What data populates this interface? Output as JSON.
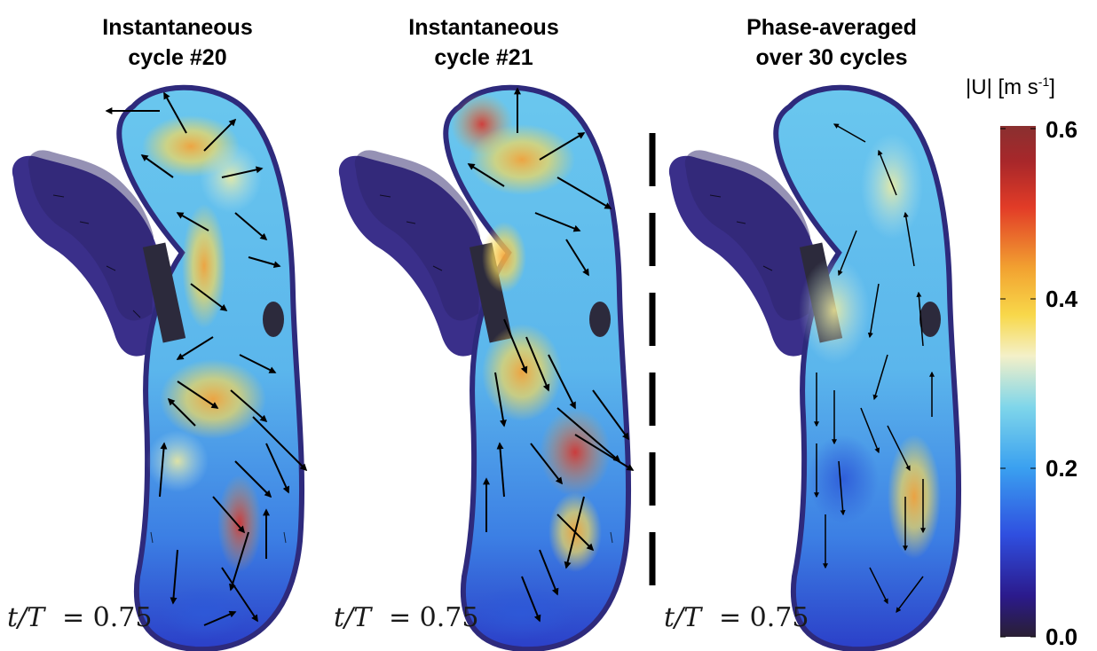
{
  "panels": [
    {
      "title_line1": "Instantaneous",
      "title_line2": "cycle #20",
      "time_label": "t/T",
      "time_value": "= 0.75"
    },
    {
      "title_line1": "Instantaneous",
      "title_line2": "cycle #21",
      "time_label": "t/T",
      "time_value": "= 0.75"
    },
    {
      "title_line1": "Phase-averaged",
      "title_line2": "over 30 cycles",
      "time_label": "t/T",
      "time_value": "= 0.75"
    }
  ],
  "colorbar": {
    "label_main": "|U| [m s",
    "label_sup": "-1",
    "label_end": "]",
    "ticks": [
      "0.6",
      "0.4",
      "0.2",
      "0.0"
    ],
    "range": [
      0,
      0.6
    ],
    "colormap": [
      "#2a1f33",
      "#2b1a8c",
      "#2f4fe0",
      "#3aa0f0",
      "#7fd6ea",
      "#f4f0c8",
      "#f8d84a",
      "#f2a331",
      "#e23c27",
      "#a8272a",
      "#8a3030"
    ]
  }
}
